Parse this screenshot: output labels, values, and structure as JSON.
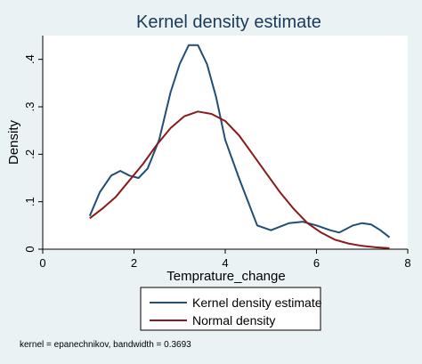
{
  "chart_data": {
    "type": "line",
    "title": "Kernel density estimate",
    "xlabel": "Temprature_change",
    "ylabel": "Density",
    "xlim": [
      0,
      8
    ],
    "ylim": [
      0,
      0.45
    ],
    "x_ticks": [
      0,
      2,
      4,
      6,
      8
    ],
    "x_tick_labels": [
      "0",
      "2",
      "4",
      "6",
      "8"
    ],
    "y_ticks": [
      0,
      0.1,
      0.2,
      0.3,
      0.4
    ],
    "y_tick_labels": [
      "0",
      ".1",
      ".2",
      ".3",
      ".4"
    ],
    "grid": false,
    "legend_position": "bottom",
    "note": "kernel = epanechnikov, bandwidth = 0.3693",
    "series": [
      {
        "name": "Kernel density estimate",
        "color": "#1f4e79",
        "x": [
          1.03,
          1.25,
          1.5,
          1.7,
          1.9,
          2.1,
          2.3,
          2.55,
          2.8,
          3.0,
          3.2,
          3.4,
          3.6,
          3.8,
          4.0,
          4.3,
          4.7,
          5.0,
          5.4,
          5.7,
          6.0,
          6.3,
          6.5,
          6.8,
          7.0,
          7.2,
          7.4,
          7.6
        ],
        "y": [
          0.07,
          0.12,
          0.155,
          0.165,
          0.155,
          0.15,
          0.17,
          0.23,
          0.33,
          0.39,
          0.43,
          0.43,
          0.39,
          0.32,
          0.23,
          0.15,
          0.05,
          0.04,
          0.055,
          0.058,
          0.05,
          0.04,
          0.035,
          0.05,
          0.055,
          0.052,
          0.04,
          0.025
        ]
      },
      {
        "name": "Normal density",
        "color": "#8b1a1a",
        "x": [
          1.03,
          1.3,
          1.6,
          1.9,
          2.2,
          2.5,
          2.8,
          3.1,
          3.4,
          3.7,
          4.0,
          4.3,
          4.6,
          4.9,
          5.2,
          5.5,
          5.8,
          6.1,
          6.4,
          6.7,
          7.0,
          7.3,
          7.6
        ],
        "y": [
          0.065,
          0.085,
          0.11,
          0.145,
          0.18,
          0.22,
          0.255,
          0.28,
          0.29,
          0.285,
          0.27,
          0.24,
          0.2,
          0.16,
          0.12,
          0.085,
          0.055,
          0.035,
          0.02,
          0.012,
          0.007,
          0.004,
          0.002
        ]
      }
    ]
  }
}
